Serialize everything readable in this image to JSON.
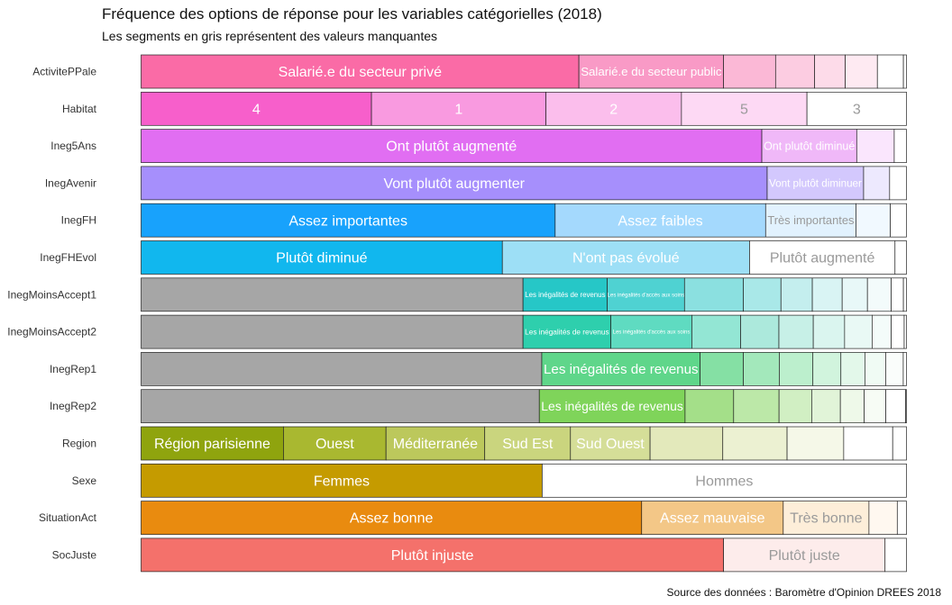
{
  "title": "Fréquence des options de réponse pour les variables catégorielles (2018)",
  "subtitle": "Les segments en gris représentent des valeurs manquantes",
  "caption": "Source des données : Baromètre d'Opinion DREES 2018",
  "chart_data": {
    "type": "bar",
    "orientation": "horizontal",
    "stacked": true,
    "normalized": true,
    "x_range": [
      0,
      1
    ],
    "missing_color": "#a6a6a6",
    "rows": [
      {
        "variable": "ActivitePPale",
        "segments": [
          {
            "label": "Salarié.e du secteur privé",
            "value": 0.572,
            "color": "#fa6ba6"
          },
          {
            "label": "Salarié.e du secteur public",
            "value": 0.189,
            "color": "#f99ac6"
          },
          {
            "label": "",
            "value": 0.068,
            "color": "#fbb8d6"
          },
          {
            "label": "",
            "value": 0.051,
            "color": "#fccce1"
          },
          {
            "label": "",
            "value": 0.04,
            "color": "#fddbe9"
          },
          {
            "label": "",
            "value": 0.042,
            "color": "#feeaf2"
          },
          {
            "label": "",
            "value": 0.034,
            "color": "#ffffff"
          },
          {
            "label": "",
            "value": 0.004,
            "color": "#ffffff"
          }
        ]
      },
      {
        "variable": "Habitat",
        "segments": [
          {
            "label": "4",
            "value": 0.301,
            "color": "#f75fcb"
          },
          {
            "label": "1",
            "value": 0.228,
            "color": "#f99ae0"
          },
          {
            "label": "2",
            "value": 0.177,
            "color": "#fbbeec"
          },
          {
            "label": "5",
            "value": 0.164,
            "color": "#fdd9f4"
          },
          {
            "label": "3",
            "value": 0.13,
            "color": "#ffffff"
          }
        ]
      },
      {
        "variable": "Ineg5Ans",
        "segments": [
          {
            "label": "Ont plutôt augmenté",
            "value": 0.811,
            "color": "#e16ef2"
          },
          {
            "label": "Ont plutôt diminué",
            "value": 0.124,
            "color": "#f0b8f8"
          },
          {
            "label": "",
            "value": 0.049,
            "color": "#fae6fd"
          },
          {
            "label": "",
            "value": 0.016,
            "color": "#ffffff"
          }
        ]
      },
      {
        "variable": "InegAvenir",
        "segments": [
          {
            "label": "Vont plutôt augmenter",
            "value": 0.818,
            "color": "#a68ffc"
          },
          {
            "label": "Vont plutôt diminuer",
            "value": 0.126,
            "color": "#d3c8fd"
          },
          {
            "label": "",
            "value": 0.034,
            "color": "#ede9fe"
          },
          {
            "label": "",
            "value": 0.022,
            "color": "#ffffff"
          }
        ]
      },
      {
        "variable": "InegFH",
        "segments": [
          {
            "label": "Assez importantes",
            "value": 0.541,
            "color": "#18a2fc"
          },
          {
            "label": "Assez faibles",
            "value": 0.275,
            "color": "#a4d9fd"
          },
          {
            "label": "Très importantes",
            "value": 0.118,
            "color": "#e2f2fe"
          },
          {
            "label": "",
            "value": 0.045,
            "color": "#f1f9ff"
          },
          {
            "label": "",
            "value": 0.021,
            "color": "#ffffff"
          }
        ]
      },
      {
        "variable": "InegFHEvol",
        "segments": [
          {
            "label": "Plutôt diminué",
            "value": 0.472,
            "color": "#11b7ee"
          },
          {
            "label": "N'ont pas évolué",
            "value": 0.323,
            "color": "#9ddff6"
          },
          {
            "label": "Plutôt augmenté",
            "value": 0.19,
            "color": "#ffffff"
          },
          {
            "label": "",
            "value": 0.015,
            "color": "#ffffff"
          }
        ]
      },
      {
        "variable": "InegMoinsAccept1",
        "segments": [
          {
            "label": "",
            "value": 0.499,
            "color": "#a6a6a6"
          },
          {
            "label": "Les inégalités de revenus",
            "value": 0.11,
            "color": "#26c7c7"
          },
          {
            "label": "Les inégalités d'accès aux soins",
            "value": 0.101,
            "color": "#4fd2d2"
          },
          {
            "label": "",
            "value": 0.077,
            "color": "#8be0e0"
          },
          {
            "label": "",
            "value": 0.049,
            "color": "#a9e8e8"
          },
          {
            "label": "",
            "value": 0.041,
            "color": "#c4eeee"
          },
          {
            "label": "",
            "value": 0.039,
            "color": "#d9f4f4"
          },
          {
            "label": "",
            "value": 0.033,
            "color": "#e8f8f8"
          },
          {
            "label": "",
            "value": 0.031,
            "color": "#f3fbfb"
          },
          {
            "label": "",
            "value": 0.016,
            "color": "#ffffff"
          },
          {
            "label": "",
            "value": 0.004,
            "color": "#ffffff"
          }
        ]
      },
      {
        "variable": "InegMoinsAccept2",
        "segments": [
          {
            "label": "",
            "value": 0.5,
            "color": "#a6a6a6"
          },
          {
            "label": "Les inégalités de revenus",
            "value": 0.115,
            "color": "#2ecfad"
          },
          {
            "label": "Les inégalités d'accès aux soins",
            "value": 0.106,
            "color": "#5fdbc1"
          },
          {
            "label": "",
            "value": 0.064,
            "color": "#93e6d4"
          },
          {
            "label": "",
            "value": 0.05,
            "color": "#ace9dc"
          },
          {
            "label": "",
            "value": 0.045,
            "color": "#c7f0e7"
          },
          {
            "label": "",
            "value": 0.041,
            "color": "#daf5ef"
          },
          {
            "label": "",
            "value": 0.036,
            "color": "#e9f9f5"
          },
          {
            "label": "",
            "value": 0.025,
            "color": "#f4fcfa"
          },
          {
            "label": "",
            "value": 0.017,
            "color": "#ffffff"
          },
          {
            "label": "",
            "value": 0.003,
            "color": "#ffffff"
          }
        ]
      },
      {
        "variable": "InegRep1",
        "segments": [
          {
            "label": "",
            "value": 0.501,
            "color": "#a6a6a6"
          },
          {
            "label": "Les inégalités de revenus",
            "value": 0.198,
            "color": "#5fd68a"
          },
          {
            "label": "",
            "value": 0.054,
            "color": "#85e0a4"
          },
          {
            "label": "",
            "value": 0.045,
            "color": "#a3e8bb"
          },
          {
            "label": "",
            "value": 0.042,
            "color": "#bcefcd"
          },
          {
            "label": "",
            "value": 0.035,
            "color": "#d1f4dd"
          },
          {
            "label": "",
            "value": 0.03,
            "color": "#e3f8ea"
          },
          {
            "label": "",
            "value": 0.026,
            "color": "#f0fbf4"
          },
          {
            "label": "",
            "value": 0.022,
            "color": "#fafdfb"
          },
          {
            "label": "",
            "value": 0.004,
            "color": "#ffffff"
          }
        ]
      },
      {
        "variable": "InegRep2",
        "segments": [
          {
            "label": "",
            "value": 0.5,
            "color": "#a6a6a6"
          },
          {
            "label": "Les inégalités de revenus",
            "value": 0.183,
            "color": "#7fd45a"
          },
          {
            "label": "",
            "value": 0.061,
            "color": "#a4df89"
          },
          {
            "label": "",
            "value": 0.057,
            "color": "#bce8a8"
          },
          {
            "label": "",
            "value": 0.041,
            "color": "#d1efc3"
          },
          {
            "label": "",
            "value": 0.036,
            "color": "#e1f4d8"
          },
          {
            "label": "",
            "value": 0.03,
            "color": "#eef9e9"
          },
          {
            "label": "",
            "value": 0.027,
            "color": "#f7fcf5"
          },
          {
            "label": "",
            "value": 0.025,
            "color": "#ffffff"
          },
          {
            "label": "",
            "value": 0.001,
            "color": "#ffffff"
          }
        ]
      },
      {
        "variable": "Region",
        "segments": [
          {
            "label": "Région parisienne",
            "value": 0.186,
            "color": "#8fa40e"
          },
          {
            "label": "Ouest",
            "value": 0.134,
            "color": "#a9b830"
          },
          {
            "label": "Méditerranée",
            "value": 0.129,
            "color": "#bcc85c"
          },
          {
            "label": "Sud Est",
            "value": 0.112,
            "color": "#cad57e"
          },
          {
            "label": "Sud Ouest",
            "value": 0.104,
            "color": "#d5de98"
          },
          {
            "label": "",
            "value": 0.095,
            "color": "#e3e9bb"
          },
          {
            "label": "",
            "value": 0.084,
            "color": "#ecf1d2"
          },
          {
            "label": "",
            "value": 0.074,
            "color": "#f5f8e8"
          },
          {
            "label": "",
            "value": 0.064,
            "color": "#ffffff"
          },
          {
            "label": "",
            "value": 0.018,
            "color": "#ffffff"
          }
        ]
      },
      {
        "variable": "Sexe",
        "segments": [
          {
            "label": "Femmes",
            "value": 0.524,
            "color": "#c59b00"
          },
          {
            "label": "Hommes",
            "value": 0.476,
            "color": "#ffffff"
          }
        ]
      },
      {
        "variable": "SituationAct",
        "segments": [
          {
            "label": "Assez bonne",
            "value": 0.654,
            "color": "#e98b0f"
          },
          {
            "label": "Assez mauvaise",
            "value": 0.185,
            "color": "#f3c787"
          },
          {
            "label": "Très bonne",
            "value": 0.112,
            "color": "#fdeed9"
          },
          {
            "label": "",
            "value": 0.037,
            "color": "#fff8f0"
          },
          {
            "label": "",
            "value": 0.012,
            "color": "#ffffff"
          }
        ]
      },
      {
        "variable": "SocJuste",
        "segments": [
          {
            "label": "Plutôt injuste",
            "value": 0.761,
            "color": "#f4716b"
          },
          {
            "label": "Plutôt juste",
            "value": 0.211,
            "color": "#fdeceb"
          },
          {
            "label": "",
            "value": 0.028,
            "color": "#ffffff"
          }
        ]
      }
    ]
  }
}
